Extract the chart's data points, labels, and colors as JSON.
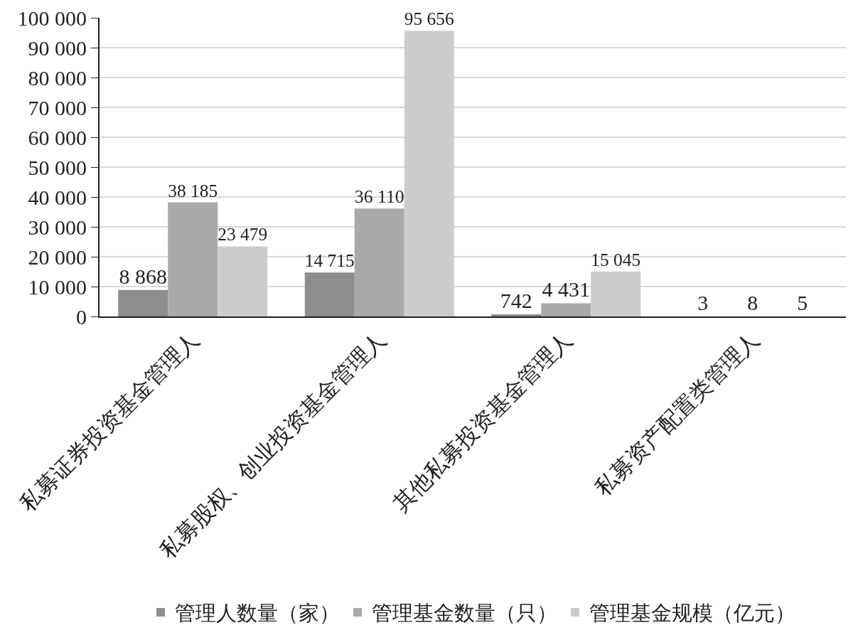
{
  "chart_data": {
    "type": "bar",
    "categories": [
      "私募证券投资基金管理人",
      "私募股权、创业投资基金管理人",
      "其他私募投资基金管理人",
      "私募资产配置类管理人"
    ],
    "series": [
      {
        "name": "管理人数量（家）",
        "color": "#8c8e90",
        "values": [
          8868,
          14715,
          742,
          3
        ],
        "value_labels": [
          "8 868",
          "14 715",
          "742",
          "3"
        ]
      },
      {
        "name": "管理基金数量（只）",
        "color": "#a7a9ab",
        "values": [
          38185,
          36110,
          4431,
          8
        ],
        "value_labels": [
          "38 185",
          "36 110",
          "4 431",
          "8"
        ]
      },
      {
        "name": "管理基金规模（亿元）",
        "color": "#cbcccd",
        "values": [
          23479,
          95656,
          15045,
          5
        ],
        "value_labels": [
          "23 479",
          "95 656",
          "15 045",
          "5"
        ]
      }
    ],
    "ylim": [
      0,
      100000
    ],
    "yticks": [
      {
        "value": 0,
        "label": "0"
      },
      {
        "value": 10000,
        "label": "10 000"
      },
      {
        "value": 20000,
        "label": "20 000"
      },
      {
        "value": 30000,
        "label": "30 000"
      },
      {
        "value": 40000,
        "label": "40 000"
      },
      {
        "value": 50000,
        "label": "50 000"
      },
      {
        "value": 60000,
        "label": "60 000"
      },
      {
        "value": 70000,
        "label": "70 000"
      },
      {
        "value": 80000,
        "label": "80 000"
      },
      {
        "value": 90000,
        "label": "90 000"
      },
      {
        "value": 100000,
        "label": "100 000"
      }
    ],
    "grid": "y",
    "legend": "bottom"
  }
}
